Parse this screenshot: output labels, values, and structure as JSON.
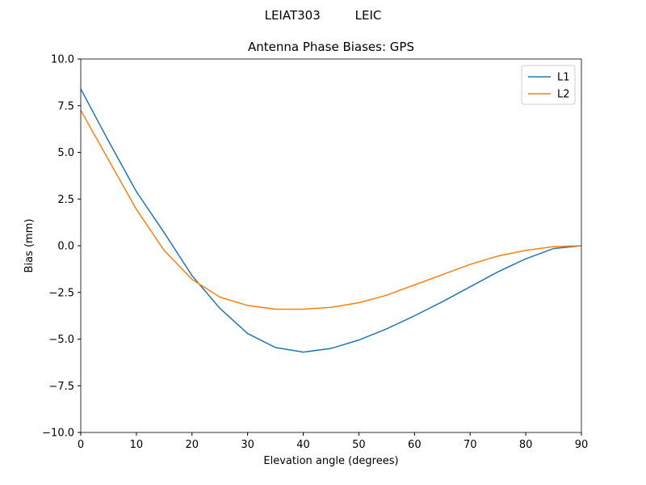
{
  "chart_data": {
    "type": "line",
    "suptitle": "LEIAT303         LEIC",
    "title": "Antenna Phase Biases: GPS",
    "x_label": "Elevation angle (degrees)",
    "y_label": "Bias (mm)",
    "x": [
      0,
      5,
      10,
      15,
      20,
      25,
      30,
      35,
      40,
      45,
      50,
      55,
      60,
      65,
      70,
      75,
      80,
      85,
      90
    ],
    "series": [
      {
        "name": "L1",
        "color": "#1f77b4",
        "values": [
          8.4,
          5.6,
          2.9,
          0.7,
          -1.6,
          -3.35,
          -4.7,
          -5.45,
          -5.7,
          -5.5,
          -5.05,
          -4.45,
          -3.75,
          -3.0,
          -2.2,
          -1.4,
          -0.7,
          -0.15,
          0
        ]
      },
      {
        "name": "L2",
        "color": "#ff7f0e",
        "values": [
          7.25,
          4.6,
          1.95,
          -0.25,
          -1.8,
          -2.75,
          -3.2,
          -3.4,
          -3.4,
          -3.3,
          -3.05,
          -2.65,
          -2.1,
          -1.55,
          -1.0,
          -0.55,
          -0.25,
          -0.05,
          0
        ]
      }
    ],
    "xlim": [
      0,
      90
    ],
    "ylim": [
      -10,
      10
    ],
    "xticks": [
      0,
      10,
      20,
      30,
      40,
      50,
      60,
      70,
      80,
      90
    ],
    "yticks": [
      {
        "value": -10,
        "label": "−10.0"
      },
      {
        "value": -7.5,
        "label": "−7.5"
      },
      {
        "value": -5,
        "label": "−5.0"
      },
      {
        "value": -2.5,
        "label": "−2.5"
      },
      {
        "value": 0,
        "label": "0.0"
      },
      2.5,
      {
        "value": 5,
        "label": "5.0"
      },
      7.5,
      {
        "value": 10,
        "label": "10.0"
      }
    ],
    "legend": "upper right"
  }
}
